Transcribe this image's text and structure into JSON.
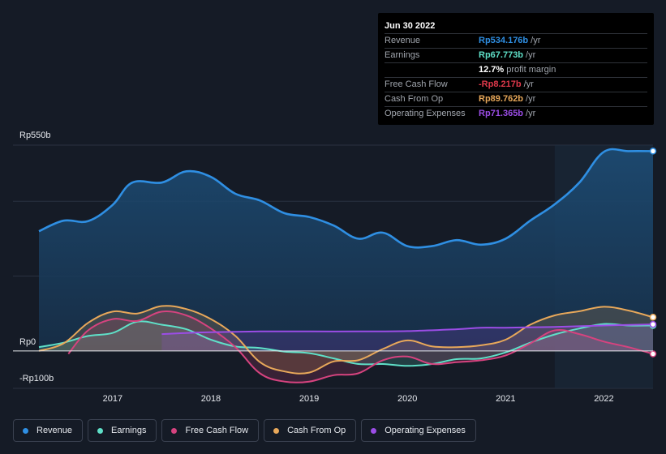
{
  "chart_data": {
    "type": "area",
    "currency_unit": "Rp",
    "y_labels": {
      "top": "Rp550b",
      "zero": "Rp0",
      "bottom": "-Rp100b"
    },
    "ylim": [
      -100,
      550
    ],
    "x_ticks": [
      "2017",
      "2018",
      "2019",
      "2020",
      "2021",
      "2022"
    ],
    "x_tick_values": [
      2017,
      2018,
      2019,
      2020,
      2021,
      2022
    ],
    "xlim": [
      2016.25,
      2022.5
    ],
    "forecast_region_start": 2021.5,
    "series": [
      {
        "name": "Revenue",
        "color": "#2f8fe3",
        "x": [
          2016.25,
          2016.5,
          2016.75,
          2017.0,
          2017.2,
          2017.5,
          2017.75,
          2018.0,
          2018.25,
          2018.5,
          2018.75,
          2019.0,
          2019.25,
          2019.5,
          2019.75,
          2020.0,
          2020.25,
          2020.5,
          2020.75,
          2021.0,
          2021.25,
          2021.5,
          2021.75,
          2022.0,
          2022.25,
          2022.5
        ],
        "values": [
          320,
          348,
          347,
          390,
          450,
          450,
          480,
          465,
          420,
          402,
          368,
          358,
          335,
          300,
          316,
          280,
          280,
          296,
          284,
          300,
          348,
          392,
          450,
          532,
          534,
          534
        ]
      },
      {
        "name": "Earnings",
        "color": "#5fe0c8",
        "x": [
          2016.25,
          2016.5,
          2016.75,
          2017.0,
          2017.25,
          2017.5,
          2017.75,
          2018.0,
          2018.25,
          2018.5,
          2018.75,
          2019.0,
          2019.25,
          2019.5,
          2019.75,
          2020.0,
          2020.25,
          2020.5,
          2020.75,
          2021.0,
          2021.25,
          2021.5,
          2021.75,
          2022.0,
          2022.25,
          2022.5
        ],
        "values": [
          10,
          22,
          40,
          48,
          78,
          70,
          58,
          30,
          12,
          8,
          -2,
          -6,
          -20,
          -35,
          -35,
          -40,
          -35,
          -22,
          -20,
          -4,
          22,
          44,
          60,
          72,
          68,
          68
        ]
      },
      {
        "name": "Free Cash Flow",
        "color": "#d6437f",
        "x": [
          2016.55,
          2016.75,
          2017.0,
          2017.25,
          2017.5,
          2017.75,
          2018.0,
          2018.25,
          2018.5,
          2018.75,
          2019.0,
          2019.25,
          2019.5,
          2019.75,
          2020.0,
          2020.25,
          2020.5,
          2020.75,
          2021.0,
          2021.25,
          2021.5,
          2021.75,
          2022.0,
          2022.25,
          2022.5
        ],
        "values": [
          -8,
          55,
          85,
          80,
          105,
          95,
          60,
          10,
          -60,
          -82,
          -82,
          -65,
          -60,
          -25,
          -15,
          -35,
          -30,
          -25,
          -12,
          20,
          55,
          45,
          25,
          10,
          -8
        ]
      },
      {
        "name": "Cash From Op",
        "color": "#e8a85a",
        "x": [
          2016.25,
          2016.5,
          2016.75,
          2017.0,
          2017.25,
          2017.5,
          2017.75,
          2018.0,
          2018.25,
          2018.5,
          2018.75,
          2019.0,
          2019.25,
          2019.5,
          2019.75,
          2020.0,
          2020.25,
          2020.5,
          2020.75,
          2021.0,
          2021.25,
          2021.5,
          2021.75,
          2022.0,
          2022.25,
          2022.5
        ],
        "values": [
          0,
          20,
          75,
          105,
          100,
          120,
          112,
          85,
          40,
          -30,
          -55,
          -58,
          -28,
          -25,
          5,
          28,
          12,
          10,
          15,
          30,
          70,
          95,
          106,
          118,
          108,
          90
        ]
      },
      {
        "name": "Operating Expenses",
        "color": "#9b4de6",
        "x": [
          2017.5,
          2017.75,
          2018.0,
          2018.5,
          2019.0,
          2019.5,
          2020.0,
          2020.5,
          2020.75,
          2021.0,
          2021.5,
          2022.0,
          2022.5
        ],
        "values": [
          45,
          48,
          50,
          52,
          52,
          52,
          53,
          58,
          62,
          62,
          64,
          68,
          71
        ]
      }
    ]
  },
  "tooltip": {
    "date": "Jun 30 2022",
    "rows": [
      {
        "label": "Revenue",
        "value": "Rp534.176b",
        "unit": "/yr",
        "color": "#2f8fe3"
      },
      {
        "label": "Earnings",
        "value": "Rp67.773b",
        "unit": "/yr",
        "color": "#5fe0c8"
      },
      {
        "label": "",
        "value": "12.7%",
        "unit": "profit margin",
        "color": "#ffffff"
      },
      {
        "label": "Free Cash Flow",
        "value": "-Rp8.217b",
        "unit": "/yr",
        "color": "#e0394b"
      },
      {
        "label": "Cash From Op",
        "value": "Rp89.762b",
        "unit": "/yr",
        "color": "#e8a85a"
      },
      {
        "label": "Operating Expenses",
        "value": "Rp71.365b",
        "unit": "/yr",
        "color": "#9b4de6"
      }
    ]
  },
  "legend": [
    {
      "label": "Revenue",
      "color": "#2f8fe3"
    },
    {
      "label": "Earnings",
      "color": "#5fe0c8"
    },
    {
      "label": "Free Cash Flow",
      "color": "#d6437f"
    },
    {
      "label": "Cash From Op",
      "color": "#e8a85a"
    },
    {
      "label": "Operating Expenses",
      "color": "#9b4de6"
    }
  ]
}
